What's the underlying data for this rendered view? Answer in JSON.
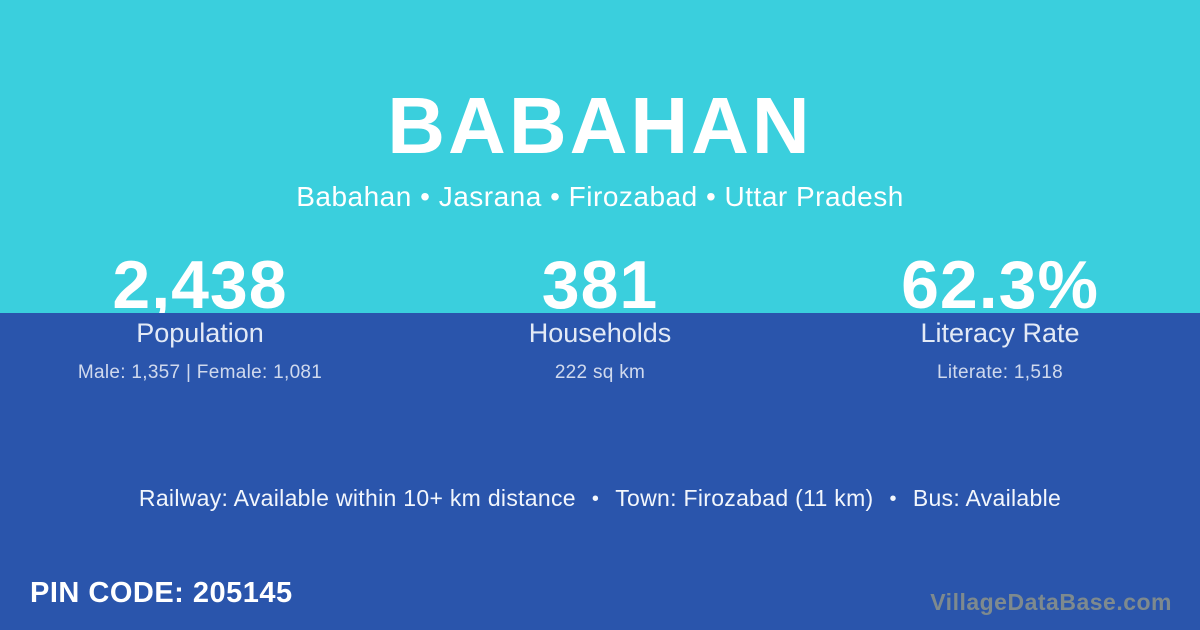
{
  "page": {
    "title": "BABAHAN",
    "location_line": "Babahan • Jasrana • Firozabad • Uttar Pradesh"
  },
  "stats": [
    {
      "value": "2,438",
      "label": "Population",
      "detail": "Male: 1,357 | Female: 1,081"
    },
    {
      "value": "381",
      "label": "Households",
      "detail": "222 sq km"
    },
    {
      "value": "62.3%",
      "label": "Literacy Rate",
      "detail": "Literate: 1,518"
    }
  ],
  "amenities": {
    "railway": "Railway: Available within 10+ km distance",
    "town": "Town: Firozabad (11 km)",
    "bus": "Bus: Available",
    "separator": "•"
  },
  "footer": {
    "pin_code": "PIN CODE: 205145",
    "watermark": "VillageDataBase.com"
  },
  "colors": {
    "top_background": "#3acfdd",
    "bottom_background": "#2a55ac",
    "text": "#ffffff",
    "watermark_text": "#7e8a8e"
  }
}
